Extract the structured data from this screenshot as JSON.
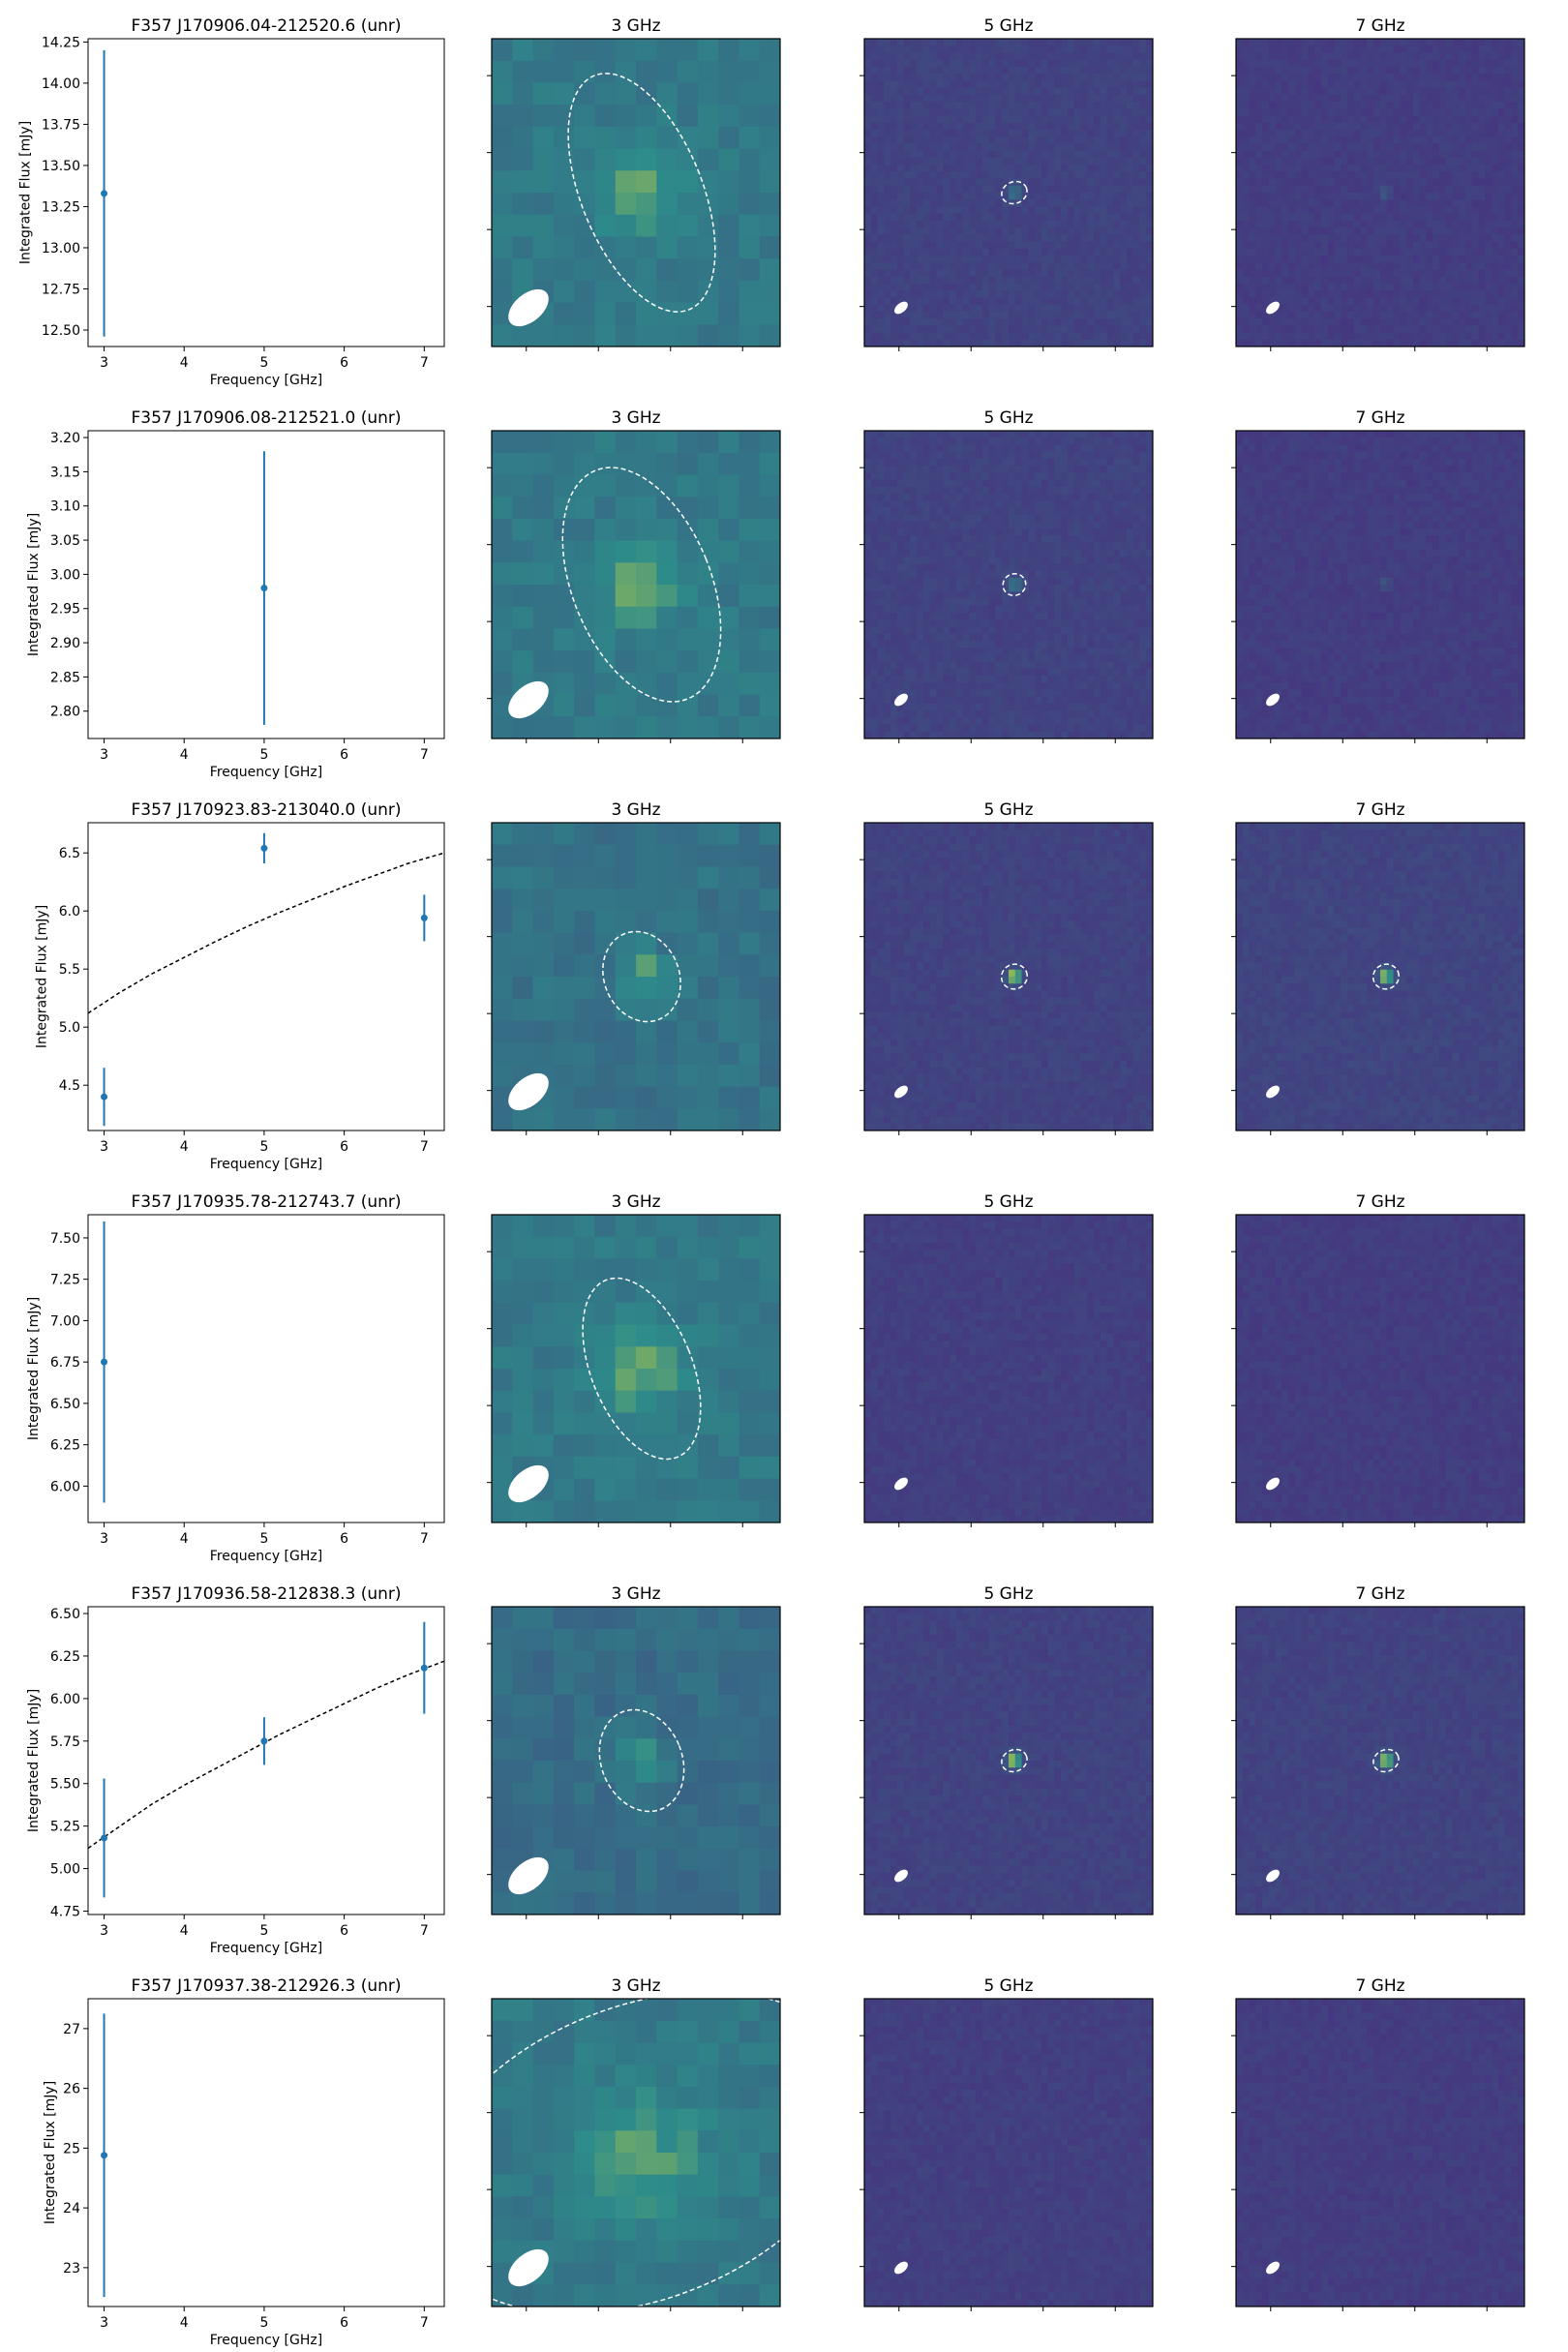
{
  "colors": {
    "series": "#1f77b4",
    "fit": "#000000",
    "map_low": "#46327e",
    "map_mid": "#2d8c8a",
    "map_high": "#fde725",
    "ellipse": "#ffffff"
  },
  "chart_data": [
    {
      "type": "scatter",
      "title": "F357 J170906.04-212520.6 (unr)",
      "xlabel": "Frequency [GHz]",
      "ylabel": "Integrated Flux [mJy]",
      "xlim": [
        2.8,
        7.25
      ],
      "ylim": [
        12.4,
        14.27
      ],
      "xticks": [
        "3",
        "4",
        "5",
        "6",
        "7"
      ],
      "yticks": [
        "12.50",
        "12.75",
        "13.00",
        "13.25",
        "13.50",
        "13.75",
        "14.00",
        "14.25"
      ],
      "series": [
        {
          "x": [
            3
          ],
          "y": [
            13.33
          ],
          "yerr": [
            0.87
          ]
        }
      ],
      "fit": null,
      "image_panels": [
        {
          "title": "3 GHz",
          "level": 0.55,
          "source": "extended",
          "ellipse_width_fraction": 0.42,
          "ellipse_height_fraction": 0.82
        },
        {
          "title": "5 GHz",
          "level": 0.45,
          "source": "point",
          "ellipse_width_fraction": 0.09,
          "ellipse_height_fraction": 0.07
        },
        {
          "title": "7 GHz",
          "level": 0.3,
          "source": "faint",
          "ellipse_width_fraction": 0,
          "ellipse_height_fraction": 0
        }
      ]
    },
    {
      "type": "scatter",
      "title": "F357 J170906.08-212521.0 (unr)",
      "xlabel": "Frequency [GHz]",
      "ylabel": "Integrated Flux [mJy]",
      "xlim": [
        2.8,
        7.25
      ],
      "ylim": [
        2.76,
        3.21
      ],
      "xticks": [
        "3",
        "4",
        "5",
        "6",
        "7"
      ],
      "yticks": [
        "2.80",
        "2.85",
        "2.90",
        "2.95",
        "3.00",
        "3.05",
        "3.10",
        "3.15",
        "3.20"
      ],
      "series": [
        {
          "x": [
            5
          ],
          "y": [
            2.98
          ],
          "yerr": [
            0.2
          ]
        }
      ],
      "fit": null,
      "image_panels": [
        {
          "title": "3 GHz",
          "level": 0.55,
          "source": "extended",
          "ellipse_width_fraction": 0.48,
          "ellipse_height_fraction": 0.8
        },
        {
          "title": "5 GHz",
          "level": 0.45,
          "source": "point",
          "ellipse_width_fraction": 0.08,
          "ellipse_height_fraction": 0.07
        },
        {
          "title": "7 GHz",
          "level": 0.3,
          "source": "faint",
          "ellipse_width_fraction": 0,
          "ellipse_height_fraction": 0
        }
      ]
    },
    {
      "type": "scatter",
      "title": "F357 J170923.83-213040.0 (unr)",
      "xlabel": "Frequency [GHz]",
      "ylabel": "Integrated Flux [mJy]",
      "xlim": [
        2.8,
        7.25
      ],
      "ylim": [
        4.11,
        6.76
      ],
      "xticks": [
        "3",
        "4",
        "5",
        "6",
        "7"
      ],
      "yticks": [
        "4.5",
        "5.0",
        "5.5",
        "6.0",
        "6.5"
      ],
      "series": [
        {
          "x": [
            3,
            5,
            7
          ],
          "y": [
            4.4,
            6.54,
            5.94
          ],
          "yerr": [
            0.25,
            0.13,
            0.2
          ]
        }
      ],
      "fit": {
        "x": [
          2.8,
          3.2,
          3.6,
          4.0,
          4.4,
          4.8,
          5.2,
          5.6,
          6.0,
          6.4,
          6.8,
          7.25
        ],
        "y": [
          5.12,
          5.3,
          5.46,
          5.6,
          5.74,
          5.87,
          5.99,
          6.1,
          6.21,
          6.31,
          6.41,
          6.5
        ]
      },
      "image_panels": [
        {
          "title": "3 GHz",
          "level": 0.5,
          "source": "compact",
          "ellipse_width_fraction": 0.26,
          "ellipse_height_fraction": 0.3
        },
        {
          "title": "5 GHz",
          "level": 0.45,
          "source": "bright",
          "ellipse_width_fraction": 0.09,
          "ellipse_height_fraction": 0.08
        },
        {
          "title": "7 GHz",
          "level": 0.5,
          "source": "bright",
          "ellipse_width_fraction": 0.09,
          "ellipse_height_fraction": 0.08
        }
      ]
    },
    {
      "type": "scatter",
      "title": "F357 J170935.78-212743.7 (unr)",
      "xlabel": "Frequency [GHz]",
      "ylabel": "Integrated Flux [mJy]",
      "xlim": [
        2.8,
        7.25
      ],
      "ylim": [
        5.78,
        7.64
      ],
      "xticks": [
        "3",
        "4",
        "5",
        "6",
        "7"
      ],
      "yticks": [
        "6.00",
        "6.25",
        "6.50",
        "6.75",
        "7.00",
        "7.25",
        "7.50"
      ],
      "series": [
        {
          "x": [
            3
          ],
          "y": [
            6.75
          ],
          "yerr": [
            0.85
          ]
        }
      ],
      "fit": null,
      "image_panels": [
        {
          "title": "3 GHz",
          "level": 0.55,
          "source": "extended",
          "ellipse_width_fraction": 0.35,
          "ellipse_height_fraction": 0.62
        },
        {
          "title": "5 GHz",
          "level": 0.35,
          "source": "none",
          "ellipse_width_fraction": 0,
          "ellipse_height_fraction": 0
        },
        {
          "title": "7 GHz",
          "level": 0.3,
          "source": "none",
          "ellipse_width_fraction": 0,
          "ellipse_height_fraction": 0
        }
      ]
    },
    {
      "type": "scatter",
      "title": "F357 J170936.58-212838.3 (unr)",
      "xlabel": "Frequency [GHz]",
      "ylabel": "Integrated Flux [mJy]",
      "xlim": [
        2.8,
        7.25
      ],
      "ylim": [
        4.73,
        6.54
      ],
      "xticks": [
        "3",
        "4",
        "5",
        "6",
        "7"
      ],
      "yticks": [
        "4.75",
        "5.00",
        "5.25",
        "5.50",
        "5.75",
        "6.00",
        "6.25",
        "6.50"
      ],
      "series": [
        {
          "x": [
            3,
            5,
            7
          ],
          "y": [
            5.18,
            5.75,
            6.18
          ],
          "yerr": [
            0.35,
            0.14,
            0.27
          ]
        }
      ],
      "fit": {
        "x": [
          2.8,
          3.2,
          3.6,
          4.0,
          4.4,
          4.8,
          5.2,
          5.6,
          6.0,
          6.4,
          6.8,
          7.25
        ],
        "y": [
          5.12,
          5.25,
          5.38,
          5.49,
          5.59,
          5.69,
          5.79,
          5.88,
          5.97,
          6.06,
          6.14,
          6.22
        ]
      },
      "image_panels": [
        {
          "title": "3 GHz",
          "level": 0.45,
          "source": "compact",
          "ellipse_width_fraction": 0.28,
          "ellipse_height_fraction": 0.34
        },
        {
          "title": "5 GHz",
          "level": 0.45,
          "source": "bright",
          "ellipse_width_fraction": 0.09,
          "ellipse_height_fraction": 0.07
        },
        {
          "title": "7 GHz",
          "level": 0.45,
          "source": "bright",
          "ellipse_width_fraction": 0.09,
          "ellipse_height_fraction": 0.07
        }
      ]
    },
    {
      "type": "scatter",
      "title": "F357 J170937.38-212926.3 (unr)",
      "xlabel": "Frequency [GHz]",
      "ylabel": "Integrated Flux [mJy]",
      "xlim": [
        2.8,
        7.25
      ],
      "ylim": [
        22.35,
        27.5
      ],
      "xticks": [
        "3",
        "4",
        "5",
        "6",
        "7"
      ],
      "yticks": [
        "23",
        "24",
        "25",
        "26",
        "27"
      ],
      "series": [
        {
          "x": [
            3
          ],
          "y": [
            24.88
          ],
          "yerr": [
            2.37
          ]
        }
      ],
      "fit": null,
      "image_panels": [
        {
          "title": "3 GHz",
          "level": 0.55,
          "source": "large",
          "ellipse_width_fraction": 1.6,
          "ellipse_height_fraction": 0.95
        },
        {
          "title": "5 GHz",
          "level": 0.35,
          "source": "none",
          "ellipse_width_fraction": 0,
          "ellipse_height_fraction": 0
        },
        {
          "title": "7 GHz",
          "level": 0.3,
          "source": "none",
          "ellipse_width_fraction": 0,
          "ellipse_height_fraction": 0
        }
      ]
    }
  ]
}
